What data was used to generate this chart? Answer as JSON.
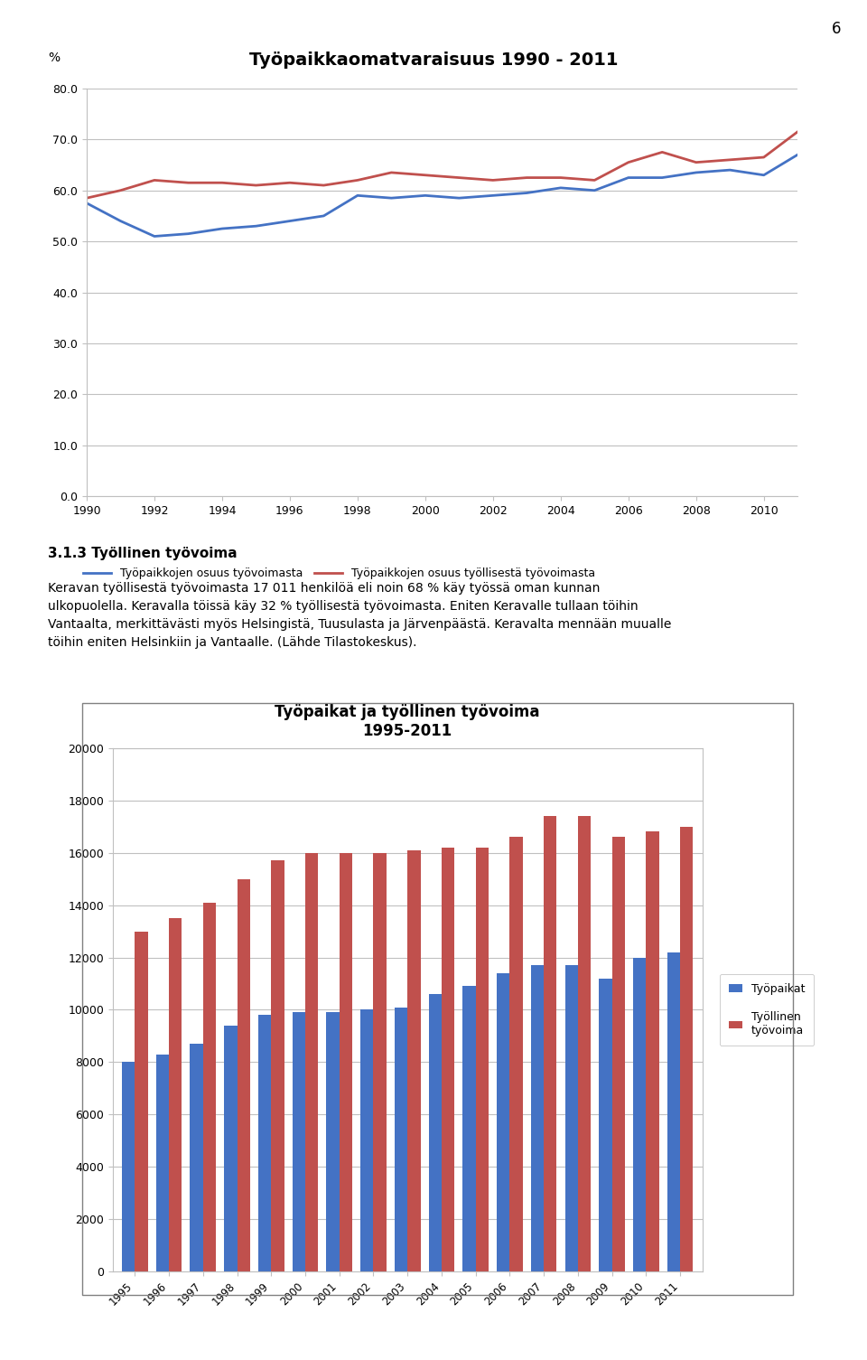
{
  "page_number": "6",
  "chart1": {
    "title": "Työpaikkaomatvaraisuus 1990 - 2011",
    "ylabel": "%",
    "ylim": [
      0.0,
      80.0
    ],
    "yticks": [
      0.0,
      10.0,
      20.0,
      30.0,
      40.0,
      50.0,
      60.0,
      70.0,
      80.0
    ],
    "years": [
      1990,
      1991,
      1992,
      1993,
      1994,
      1995,
      1996,
      1997,
      1998,
      1999,
      2000,
      2001,
      2002,
      2003,
      2004,
      2005,
      2006,
      2007,
      2008,
      2009,
      2010,
      2011
    ],
    "xtick_years": [
      1990,
      1992,
      1994,
      1996,
      1998,
      2000,
      2002,
      2004,
      2006,
      2008,
      2010
    ],
    "line1_label": "Työpaikkojen osuus työvoimasta",
    "line1_color": "#4472C4",
    "line1_values": [
      57.5,
      54.0,
      51.0,
      51.5,
      52.5,
      53.0,
      54.0,
      55.0,
      59.0,
      58.5,
      59.0,
      58.5,
      59.0,
      59.5,
      60.5,
      60.0,
      62.5,
      62.5,
      63.5,
      64.0,
      63.0,
      67.0
    ],
    "line2_label": "Työpaikkojen osuus työllisestä työvoimasta",
    "line2_color": "#C0504D",
    "line2_values": [
      58.5,
      60.0,
      62.0,
      61.5,
      61.5,
      61.0,
      61.5,
      61.0,
      62.0,
      63.5,
      63.0,
      62.5,
      62.0,
      62.5,
      62.5,
      62.0,
      65.5,
      67.5,
      65.5,
      66.0,
      66.5,
      71.5
    ]
  },
  "text_heading": "3.1.3 Työllinen työvoima",
  "text_body": "Keravan työllisestä työvoimasta 17 011 henkilöä eli noin 68 % käy työssä oman kunnan ulkopuolella. Keravalla töissä käy 32 % työllisestä työvoimasta. Eniten Keravalle tullaan töihin Vantaalta, merkittävästi myös Helsingistä, Tuusulasta ja Järvenpäästä. Keravalta mennään muualle töihin eniten Helsinkiin ja Vantaalle. (Lähde Tilastokeskus).",
  "chart2": {
    "title": "Työpaikat ja työllinen työvoima\n1995-2011",
    "years": [
      "1995",
      "1996",
      "1997",
      "1998",
      "1999",
      "2000",
      "2001",
      "2002",
      "2003",
      "2004",
      "2005",
      "2006",
      "2007",
      "2008",
      "2009",
      "2010",
      "2011"
    ],
    "bar1_label": "Työpaikat",
    "bar1_color": "#4472C4",
    "bar1_values": [
      8000,
      8300,
      8700,
      9400,
      9800,
      9900,
      9900,
      10000,
      10100,
      10600,
      10900,
      11400,
      11700,
      11700,
      11200,
      12000,
      12200
    ],
    "bar2_label": "Työllinen\ntyövoima",
    "bar2_color": "#C0504D",
    "bar2_values": [
      13000,
      13500,
      14100,
      15000,
      15700,
      16000,
      16000,
      16000,
      16100,
      16200,
      16200,
      16600,
      17400,
      17400,
      16600,
      16800,
      17000
    ],
    "ylim": [
      0,
      20000
    ],
    "yticks": [
      0,
      2000,
      4000,
      6000,
      8000,
      10000,
      12000,
      14000,
      16000,
      18000,
      20000
    ]
  },
  "background_color": "#ffffff"
}
